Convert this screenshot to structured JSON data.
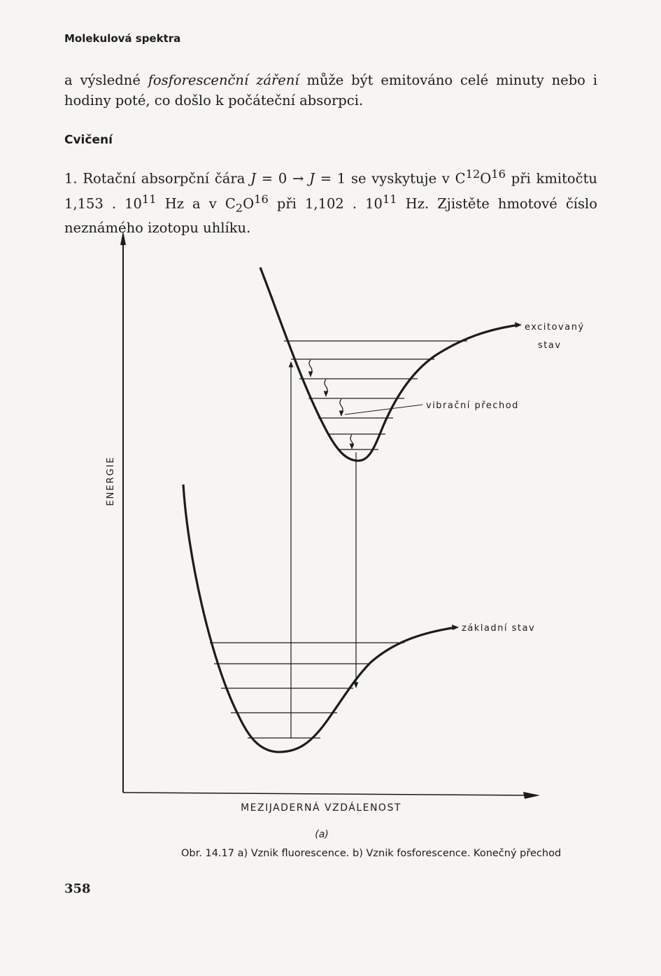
{
  "header": {
    "running_head": "Molekulová spektra"
  },
  "paragraph_1": {
    "part1": "a výsledné ",
    "italic": "fosforescenční záření",
    "part2": " může být emitováno celé minuty nebo i hodiny poté, co došlo k počáteční absorpci."
  },
  "section_title": "Cvičení",
  "exercise_1": {
    "t1": "1. Rotační absorpční čára ",
    "j0": "J",
    "t2": " = 0 → ",
    "j1": "J",
    "t3": " = 1 se vyskytuje v C",
    "s1": "12",
    "t4": "O",
    "s2": "16",
    "t5": " při kmitočtu 1,153 . 10",
    "s3": "11",
    "t6": " Hz a v C",
    "sub": "2",
    "t7": "O",
    "s4": "16",
    "t8": " při 1,102 . 10",
    "s5": "11",
    "t9": " Hz. Zjistěte hmotové číslo neznámého izotopu uhlíku."
  },
  "figure": {
    "y_axis_label": "ENERGIE",
    "x_axis_label": "MEZIJADERNÁ VZDÁLENOST",
    "excited_state_label_line1": "excitovaný",
    "excited_state_label_line2": "stav",
    "vibrational_transition_label": "vibrační přechod",
    "ground_state_label": "základní stav",
    "sub_label": "(a)",
    "line_color": "#1c1c1c"
  },
  "caption": "Obr. 14.17 a) Vznik fluorescence. b) Vznik fosforescence. Konečný přechod",
  "page_number": "358"
}
